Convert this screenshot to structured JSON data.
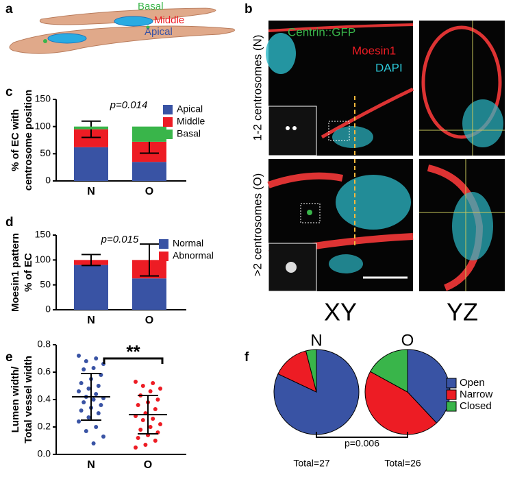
{
  "panels": {
    "a": {
      "letter": "a",
      "labels": [
        "Basal",
        "Middle",
        "Apical"
      ]
    },
    "b": {
      "letter": "b",
      "channels": [
        "Centrin::GFP",
        "Moesin1",
        "DAPI"
      ],
      "rows": [
        "1-2 centrosomes (N)",
        ">2 centrosomes (O)"
      ],
      "columns": [
        "XY",
        "YZ"
      ]
    }
  },
  "chart_data": [
    {
      "panel": "c",
      "type": "stacked-bar",
      "y_label": [
        "% of EC with",
        "centrosome position"
      ],
      "categories": [
        "N",
        "O"
      ],
      "annotation": "p=0.014",
      "series": [
        {
          "name": "Apical",
          "color": "#3953a4",
          "values": [
            62,
            35
          ]
        },
        {
          "name": "Middle",
          "color": "#ed1c24",
          "values": [
            33,
            37
          ],
          "errors": [
            15,
            21
          ]
        },
        {
          "name": "Basal",
          "color": "#39b54a",
          "values": [
            5,
            28
          ]
        }
      ],
      "ylim": [
        0,
        150
      ],
      "yticks": [
        0,
        50,
        100,
        150
      ]
    },
    {
      "panel": "d",
      "type": "stacked-bar",
      "y_label": [
        "Moesin1 pattern",
        "% of EC"
      ],
      "categories": [
        "N",
        "O"
      ],
      "annotation": "p=0.015",
      "series": [
        {
          "name": "Normal",
          "color": "#3953a4",
          "values": [
            90,
            63
          ]
        },
        {
          "name": "Abnormal",
          "color": "#ed1c24",
          "values": [
            10,
            37
          ],
          "errors": [
            11,
            32
          ]
        }
      ],
      "ylim": [
        0,
        150
      ],
      "yticks": [
        0,
        50,
        100,
        150
      ]
    },
    {
      "panel": "e",
      "type": "scatter",
      "y_label": [
        "Lumen width/",
        "Total vessel width"
      ],
      "categories": [
        "N",
        "O"
      ],
      "annotation": "**",
      "series": [
        {
          "name": "N",
          "color": "#3953a4",
          "values": [
            0.72,
            0.7,
            0.68,
            0.66,
            0.63,
            0.62,
            0.58,
            0.55,
            0.52,
            0.5,
            0.48,
            0.46,
            0.44,
            0.42,
            0.41,
            0.4,
            0.38,
            0.36,
            0.34,
            0.32,
            0.3,
            0.27,
            0.24,
            0.2,
            0.17,
            0.13,
            0.08
          ],
          "mean": 0.42,
          "sd": 0.17
        },
        {
          "name": "O",
          "color": "#ed1c24",
          "values": [
            0.53,
            0.52,
            0.5,
            0.48,
            0.46,
            0.43,
            0.4,
            0.38,
            0.36,
            0.33,
            0.3,
            0.28,
            0.26,
            0.25,
            0.22,
            0.2,
            0.18,
            0.16,
            0.14,
            0.12,
            0.1,
            0.07,
            0.05
          ],
          "mean": 0.29,
          "sd": 0.14
        }
      ],
      "ylim": [
        0,
        0.8
      ],
      "yticks": [
        {
          "value": 0,
          "label": "0.0"
        },
        0.2,
        0.4,
        0.6,
        0.8
      ]
    },
    {
      "panel": "f",
      "type": "pie",
      "categories": [
        "Open",
        "Narrow",
        "Closed"
      ],
      "colors": [
        "#3953a4",
        "#ed1c24",
        "#39b54a"
      ],
      "annotation": "p=0.006",
      "series": [
        {
          "name": "N",
          "values": [
            82,
            14,
            4
          ],
          "total": "Total=27"
        },
        {
          "name": "O",
          "values": [
            38,
            45,
            17
          ],
          "total": "Total=26"
        }
      ]
    }
  ]
}
